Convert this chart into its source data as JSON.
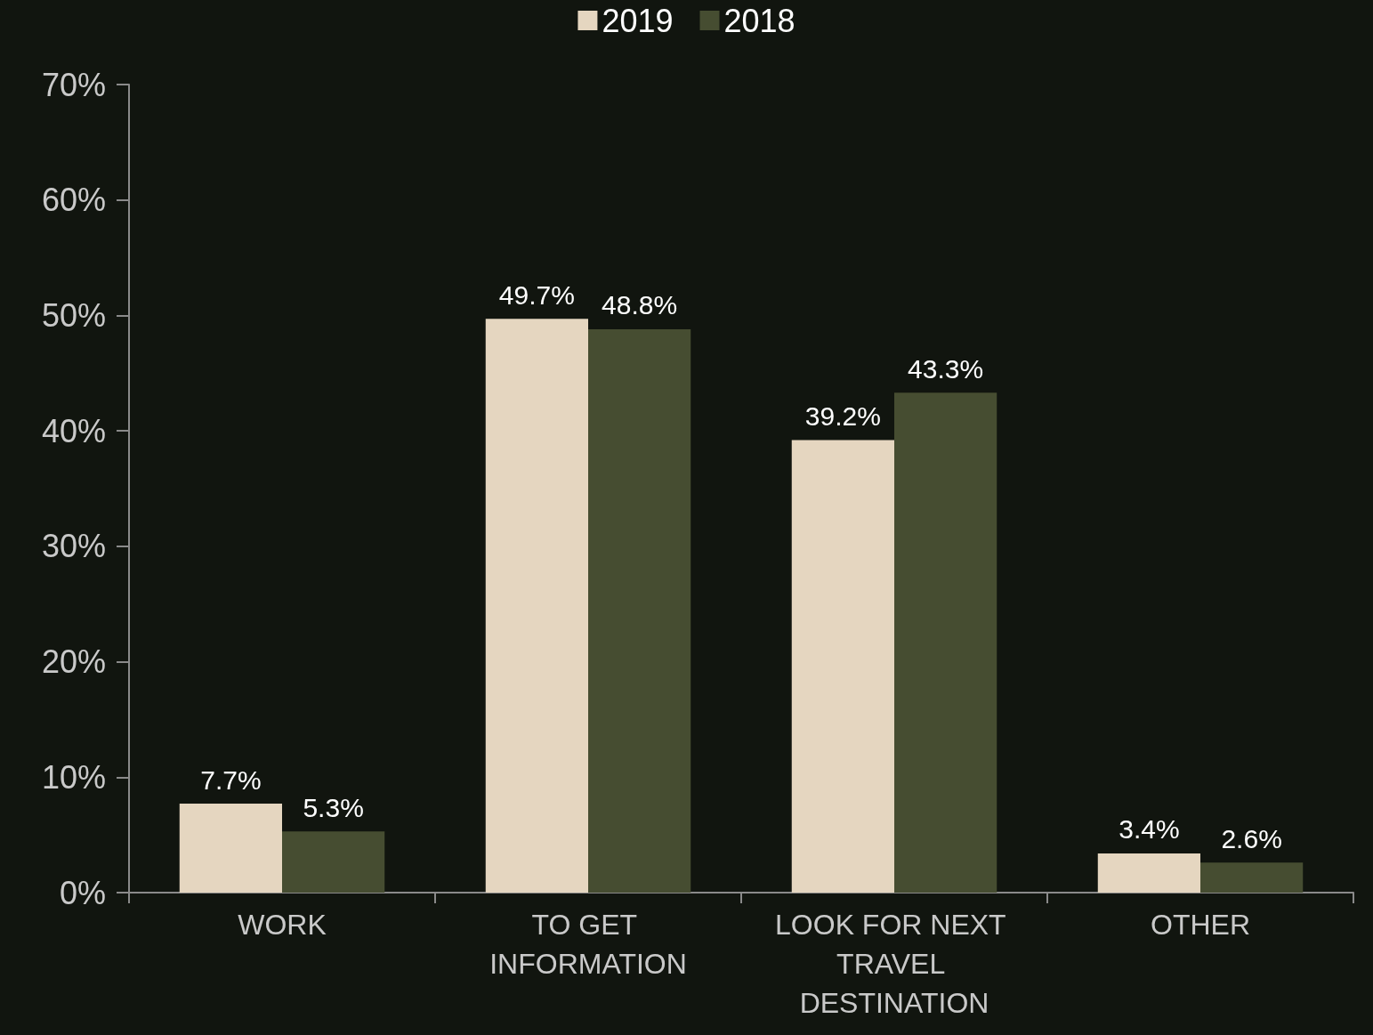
{
  "chart_data": {
    "type": "bar",
    "categories": [
      "WORK",
      "TO GET INFORMATION",
      "LOOK FOR NEXT TRAVEL DESTINATION",
      "OTHER"
    ],
    "series": [
      {
        "name": "2019",
        "color": "#e5d6c0",
        "values": [
          7.7,
          49.7,
          39.2,
          3.4
        ],
        "value_labels": [
          "7.7%",
          "49.7%",
          "39.2%",
          "3.4%"
        ]
      },
      {
        "name": "2018",
        "color": "#464d31",
        "values": [
          5.3,
          48.8,
          43.3,
          2.6
        ],
        "value_labels": [
          "5.3%",
          "48.8%",
          "43.3%",
          "2.6%"
        ]
      }
    ],
    "ylim": [
      0,
      70
    ],
    "yticks": [
      {
        "value": 0,
        "label": "0%"
      },
      {
        "value": 10,
        "label": "10%"
      },
      {
        "value": 20,
        "label": "20%"
      },
      {
        "value": 30,
        "label": "30%"
      },
      {
        "value": 40,
        "label": "40%"
      },
      {
        "value": 50,
        "label": "50%"
      },
      {
        "value": 60,
        "label": "60%"
      },
      {
        "value": 70,
        "label": "70%"
      }
    ],
    "grid": false,
    "legend": "top"
  }
}
